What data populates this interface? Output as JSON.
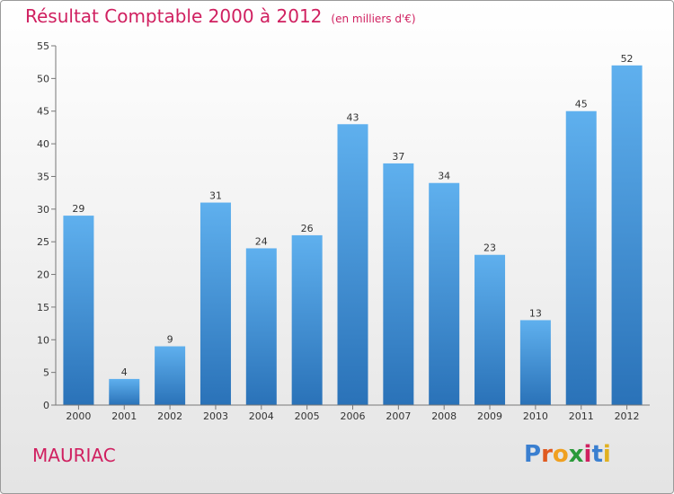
{
  "chart_data": {
    "type": "bar",
    "title": "Résultat Comptable 2000 à 2012",
    "subtitle": "(en milliers d'€)",
    "categories": [
      "2000",
      "2001",
      "2002",
      "2003",
      "2004",
      "2005",
      "2006",
      "2007",
      "2008",
      "2009",
      "2010",
      "2011",
      "2012"
    ],
    "values": [
      29,
      4,
      9,
      31,
      24,
      26,
      43,
      37,
      34,
      23,
      13,
      45,
      52
    ],
    "ylim": [
      0,
      55
    ],
    "yticks": [
      0,
      5,
      10,
      15,
      20,
      25,
      30,
      35,
      40,
      45,
      50,
      55
    ],
    "xlabel": "",
    "ylabel": "",
    "grid": false,
    "bar_color": "#3d8fd6"
  },
  "commune": "MAURIAC",
  "logo": {
    "letters": [
      "P",
      "r",
      "o",
      "x",
      "i",
      "t",
      "i"
    ],
    "colors": [
      "#3a7fd0",
      "#e05a20",
      "#f0a020",
      "#2a9a3a",
      "#d02060",
      "#3a7fd0",
      "#e0b020"
    ]
  }
}
